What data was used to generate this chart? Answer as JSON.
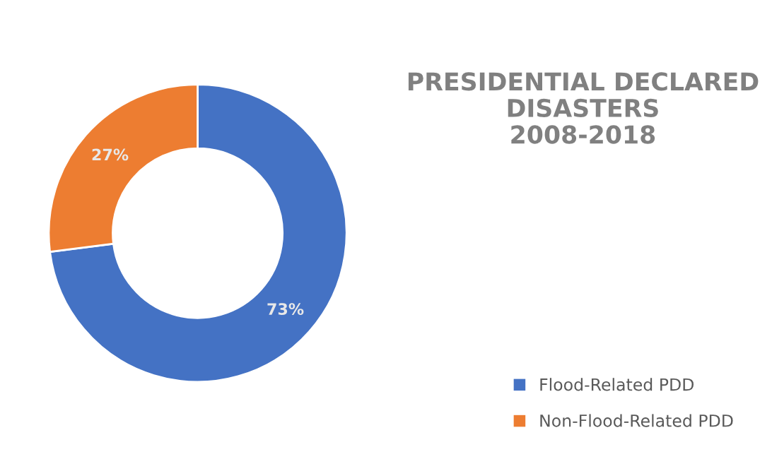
{
  "chart_data": {
    "type": "donut",
    "title": "PRESIDENTIAL DECLARED\nDISASTERS\n2008-2018",
    "categories": [
      "Flood-Related PDD",
      "Non-Flood-Related PDD"
    ],
    "values": [
      73,
      27
    ],
    "colors": [
      "#4472c4",
      "#ed7d31"
    ],
    "value_labels": [
      "73%",
      "27%"
    ],
    "legend": "bottom right"
  }
}
